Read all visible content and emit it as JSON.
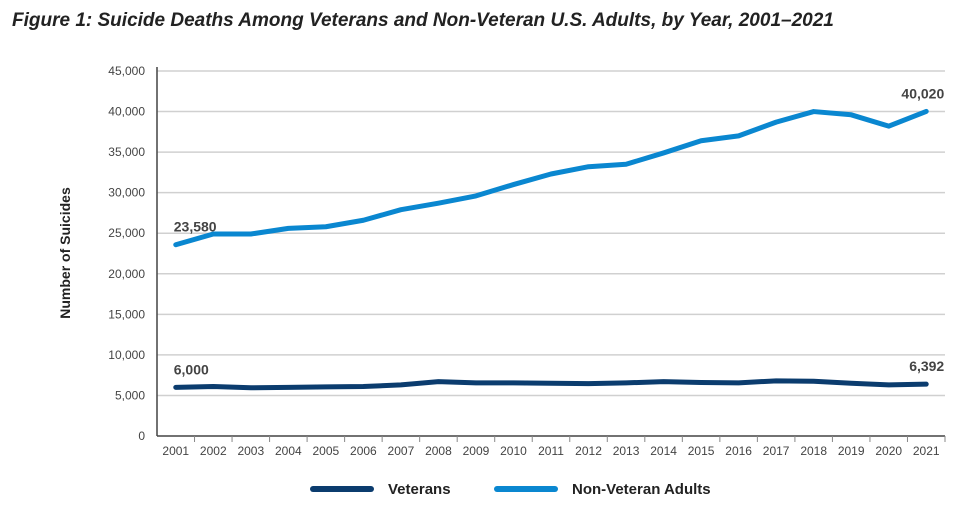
{
  "chart_data": {
    "type": "line",
    "title": "Figure 1: Suicide Deaths Among Veterans and Non-Veteran U.S. Adults, by Year, 2001–2021",
    "xlabel": "",
    "ylabel": "Number of Suicides",
    "ylim": [
      0,
      45000
    ],
    "yticks": [
      "0",
      "5,000",
      "10,000",
      "15,000",
      "20,000",
      "25,000",
      "30,000",
      "35,000",
      "40,000",
      "45,000"
    ],
    "categories": [
      "2001",
      "2002",
      "2003",
      "2004",
      "2005",
      "2006",
      "2007",
      "2008",
      "2009",
      "2010",
      "2011",
      "2012",
      "2013",
      "2014",
      "2015",
      "2016",
      "2017",
      "2018",
      "2019",
      "2020",
      "2021"
    ],
    "grid": true,
    "legend": "bottom",
    "series": [
      {
        "name": "Veterans",
        "color": "#0b3c6e",
        "values": [
          6000,
          6100,
          5950,
          6000,
          6050,
          6100,
          6300,
          6700,
          6550,
          6550,
          6500,
          6450,
          6550,
          6700,
          6600,
          6550,
          6800,
          6750,
          6500,
          6300,
          6392
        ],
        "labels": {
          "first": "6,000",
          "last": "6,392"
        }
      },
      {
        "name": "Non-Veteran Adults",
        "color": "#0a87d0",
        "values": [
          23580,
          24900,
          24900,
          25600,
          25800,
          26600,
          27900,
          28700,
          29600,
          31000,
          32300,
          33200,
          33500,
          34900,
          36400,
          37000,
          38700,
          40000,
          39600,
          38200,
          40020
        ],
        "labels": {
          "first": "23,580",
          "last": "40,020"
        }
      }
    ]
  }
}
